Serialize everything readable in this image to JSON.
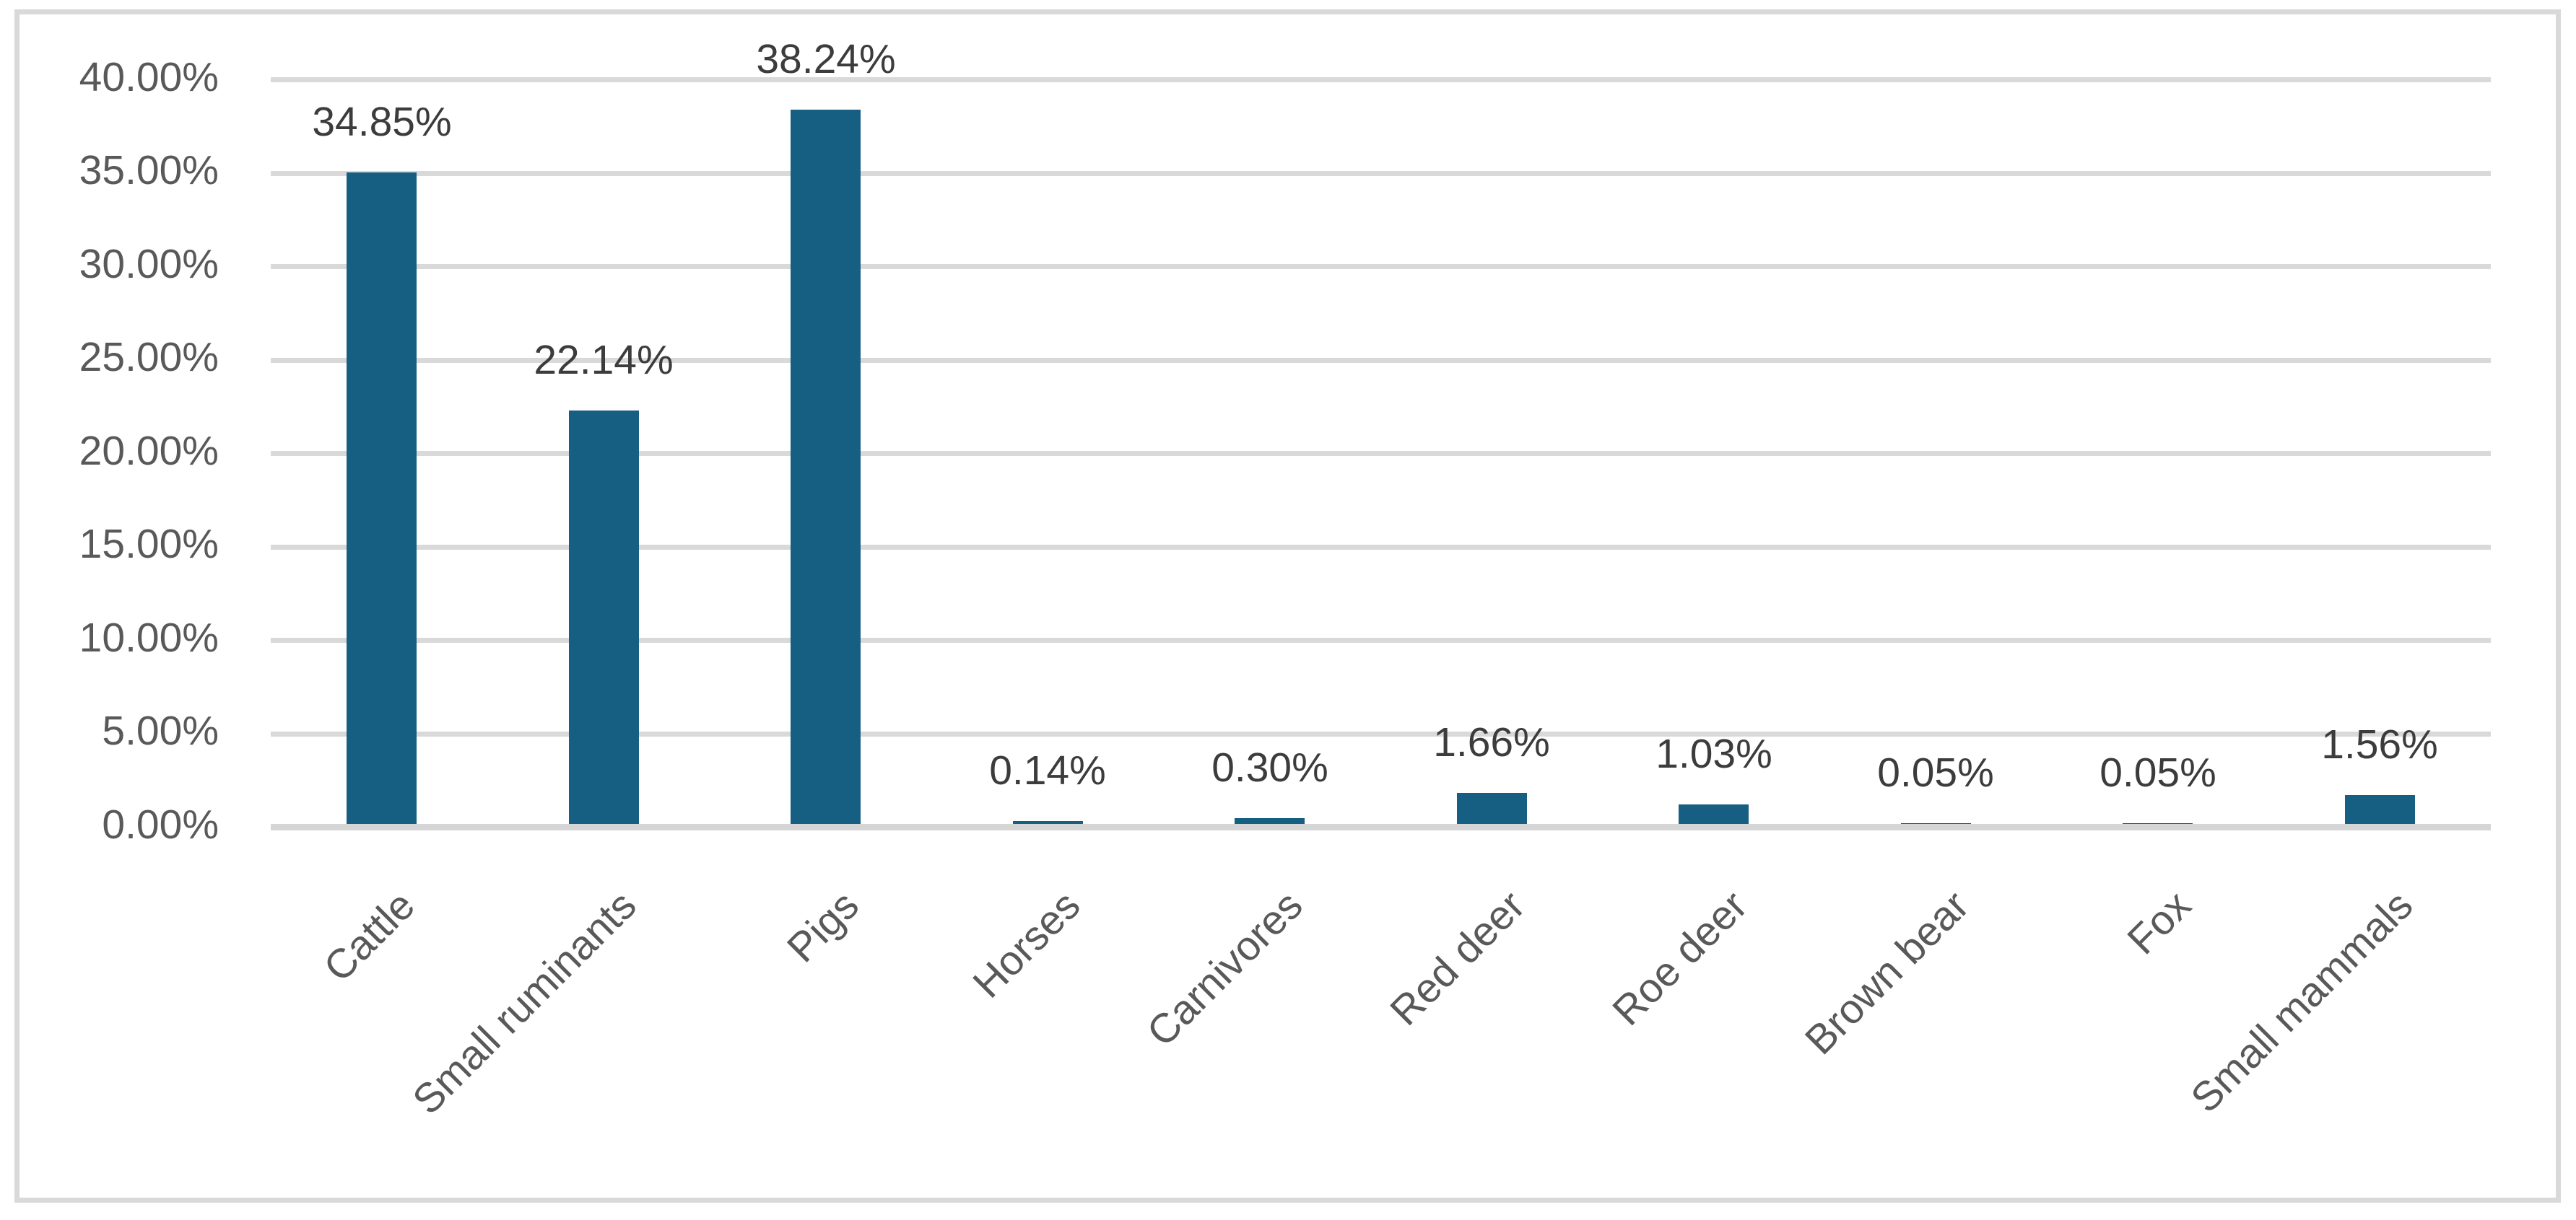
{
  "chart_data": {
    "type": "bar",
    "title": "",
    "xlabel": "",
    "ylabel": "",
    "categories": [
      "Cattle",
      "Small ruminants",
      "Pigs",
      "Horses",
      "Carnivores",
      "Red deer",
      "Roe deer",
      "Brown bear",
      "Fox",
      "Small mammals"
    ],
    "values": [
      34.85,
      22.14,
      38.24,
      0.14,
      0.3,
      1.66,
      1.03,
      0.05,
      0.05,
      1.56
    ],
    "data_labels": [
      "34.85%",
      "22.14%",
      "38.24%",
      "0.14%",
      "0.30%",
      "1.66%",
      "1.03%",
      "0.05%",
      "0.05%",
      "1.56%"
    ],
    "y_ticks": [
      "0.00%",
      "5.00%",
      "10.00%",
      "15.00%",
      "20.00%",
      "25.00%",
      "30.00%",
      "35.00%",
      "40.00%"
    ],
    "ylim": [
      0,
      40
    ],
    "y_tick_step": 5,
    "grid": true,
    "legend": false,
    "x_label_rotation_deg": -45,
    "colors": {
      "bar": "#165F82",
      "data_label": "#3C3C3C",
      "tick_label": "#595959",
      "gridline": "#D9D9D9",
      "axis_line": "#D5D5D5",
      "frame_border": "#D9D9D9",
      "background": "#FFFFFF"
    }
  }
}
